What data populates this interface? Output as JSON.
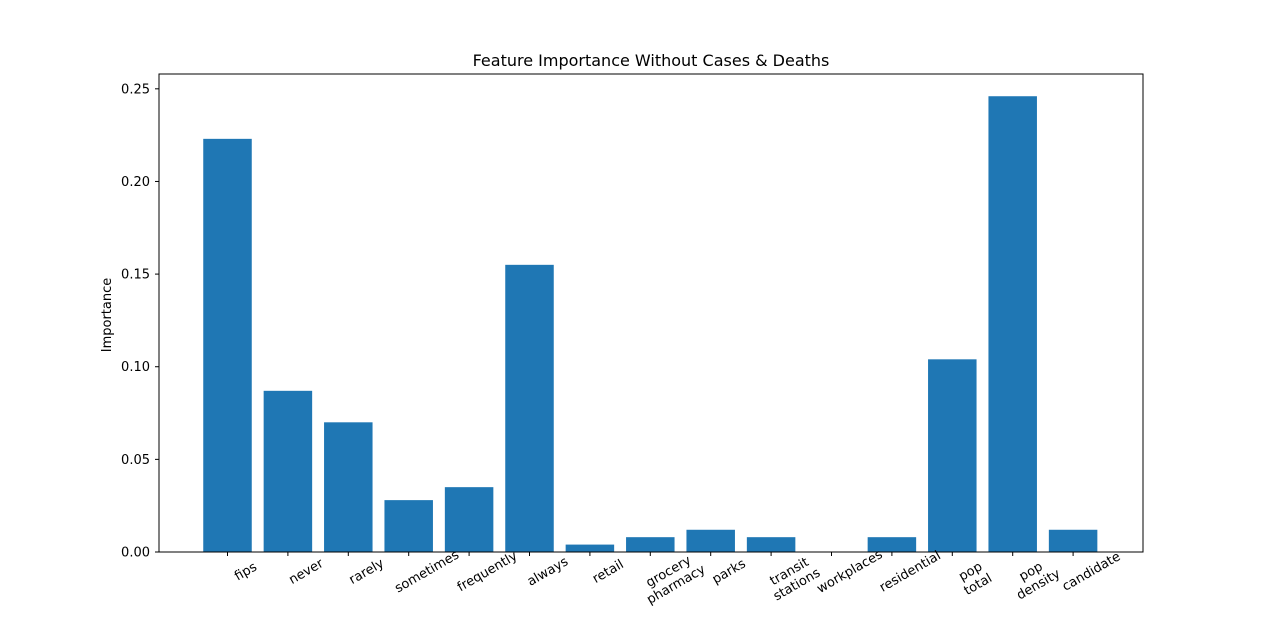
{
  "chart_data": {
    "type": "bar",
    "title": "Feature Importance Without Cases & Deaths",
    "xlabel": "",
    "ylabel": "Importance",
    "ylim": [
      0,
      0.258
    ],
    "yticks": [
      "0.00",
      "0.05",
      "0.10",
      "0.15",
      "0.20",
      "0.25"
    ],
    "categories": [
      "fips",
      "never",
      "rarely",
      "sometimes",
      "frequently",
      "always",
      "retail",
      "grocery\npharmacy",
      "parks",
      "transit\nstations",
      "workplaces",
      "residential",
      "pop\ntotal",
      "pop\ndensity",
      "candidate"
    ],
    "values": [
      0.223,
      0.087,
      0.07,
      0.028,
      0.035,
      0.155,
      0.004,
      0.008,
      0.012,
      0.008,
      0.0,
      0.008,
      0.104,
      0.246,
      0.012
    ],
    "bar_color": "#1f77b4",
    "grid": false
  }
}
